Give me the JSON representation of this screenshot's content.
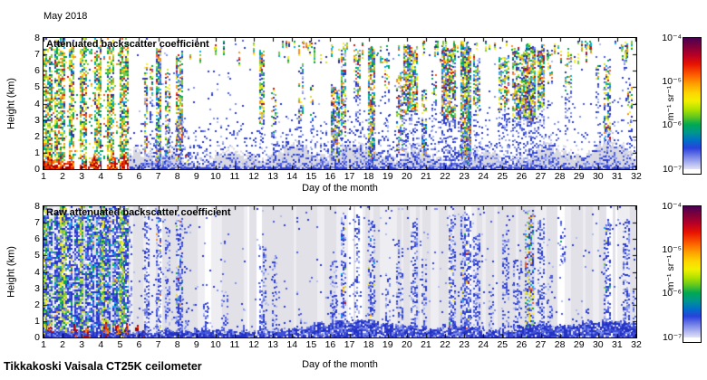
{
  "figure": {
    "title": "May 2018",
    "footer": "Tikkakoski Vaisala CT25K ceilometer",
    "xlabel": "Day of the month",
    "ylabel": "Height (km)",
    "x_ticks": [
      1,
      2,
      3,
      4,
      5,
      6,
      7,
      8,
      9,
      10,
      11,
      12,
      13,
      14,
      15,
      16,
      17,
      18,
      19,
      20,
      21,
      22,
      23,
      24,
      25,
      26,
      27,
      28,
      29,
      30,
      31,
      32
    ],
    "y_ticks": [
      0,
      1,
      2,
      3,
      4,
      5,
      6,
      7,
      8
    ],
    "colorbar": {
      "unit": "m⁻¹ sr⁻¹",
      "ticks": [
        "10⁻⁴",
        "10⁻⁵",
        "10⁻⁶",
        "10⁻⁷"
      ]
    }
  },
  "palettes": {
    "rain": [
      [
        "#00a651",
        0.16
      ],
      [
        "#7ac943",
        0.15
      ],
      [
        "#d9e021",
        0.13
      ],
      [
        "#fcee21",
        0.12
      ],
      [
        "#f7931e",
        0.1
      ],
      [
        "#f15a24",
        0.07
      ],
      [
        "#d01010",
        0.06
      ],
      [
        "#00aeef",
        0.1
      ],
      [
        "#2e3192",
        0.11
      ]
    ],
    "field_top": [
      [
        "#00a651",
        0.17
      ],
      [
        "#7ac943",
        0.15
      ],
      [
        "#d9e021",
        0.13
      ],
      [
        "#fcee21",
        0.12
      ],
      [
        "#f7931e",
        0.09
      ],
      [
        "#f15a24",
        0.05
      ],
      [
        "#d01010",
        0.04
      ],
      [
        "#00aeef",
        0.09
      ],
      [
        "#2e3192",
        0.11
      ],
      [
        "#ffffff",
        0.05
      ]
    ],
    "field_bottom": [
      [
        "#2433cc",
        0.38
      ],
      [
        "#4b5ae0",
        0.18
      ],
      [
        "#8a97ec",
        0.12
      ],
      [
        "#00a651",
        0.07
      ],
      [
        "#7ac943",
        0.05
      ],
      [
        "#00aeef",
        0.06
      ],
      [
        "#d9e021",
        0.04
      ],
      [
        "#f7931e",
        0.02
      ],
      [
        "#ffffff",
        0.08
      ]
    ],
    "warm": [
      [
        "#c00000",
        0.3
      ],
      [
        "#e83000",
        0.25
      ],
      [
        "#ff6a00",
        0.2
      ],
      [
        "#8f0000",
        0.15
      ],
      [
        "#ff9e00",
        0.1
      ]
    ],
    "blues": [
      [
        "#2a3bd0",
        0.35
      ],
      [
        "#4d5fde",
        0.3
      ],
      [
        "#8391ea",
        0.2
      ],
      [
        "#b0baf2",
        0.15
      ]
    ],
    "blues_dark": [
      [
        "#2331c4",
        0.45
      ],
      [
        "#3f50d8",
        0.3
      ],
      [
        "#7787e6",
        0.25
      ]
    ],
    "greens": [
      [
        "#7ac943",
        0.35
      ],
      [
        "#d9e021",
        0.3
      ],
      [
        "#fcee21",
        0.2
      ],
      [
        "#00a651",
        0.15
      ]
    ],
    "gray_layer": "#d8d8e0"
  },
  "colormap": [
    [
      0,
      "#4a0052"
    ],
    [
      0.06,
      "#7c003e"
    ],
    [
      0.13,
      "#b60026"
    ],
    [
      0.2,
      "#e81400"
    ],
    [
      0.28,
      "#fd5c00"
    ],
    [
      0.35,
      "#ffa000"
    ],
    [
      0.42,
      "#fdd600"
    ],
    [
      0.48,
      "#f2f000"
    ],
    [
      0.54,
      "#b4e400"
    ],
    [
      0.6,
      "#64c81e"
    ],
    [
      0.66,
      "#00a855"
    ],
    [
      0.72,
      "#00968e"
    ],
    [
      0.78,
      "#0070c8"
    ],
    [
      0.84,
      "#2a42dc"
    ],
    [
      0.9,
      "#7280e8"
    ],
    [
      0.96,
      "#b6bcf0"
    ],
    [
      1,
      "#e2e2f6"
    ]
  ],
  "chart_data": [
    {
      "type": "heatmap",
      "title": "Attenuated backscatter coefficient",
      "xlabel": "Day of the month",
      "ylabel": "Height (km)",
      "x_range": [
        1,
        32
      ],
      "y_range_km": [
        0,
        8
      ],
      "color_scale": {
        "unit": "m⁻¹ sr⁻¹",
        "scale": "log",
        "min": "1e-7",
        "max": "1e-4",
        "tick_labels": [
          "10⁻⁴",
          "10⁻⁵",
          "10⁻⁶",
          "10⁻⁷"
        ]
      },
      "background": "#ffffff",
      "seed": 42,
      "notes": "clouds entries = [day_start, day_end, km_bottom, km_top, density]; dense precipitation/cloud 1-5.5, boundary-layer gray aerosol below ~2 km after day 5.5",
      "dense_field": {
        "d0": 1,
        "d1": 5.45,
        "density": 0.72,
        "gap_density": 0.1,
        "gaps": [
          [
            1.38,
            1.55
          ],
          [
            2.08,
            2.3
          ],
          [
            2.6,
            2.88
          ],
          [
            3.2,
            3.58
          ],
          [
            3.98,
            4.28
          ],
          [
            4.62,
            4.97
          ]
        ],
        "surface_arcs": [
          [
            1.0,
            1.6
          ],
          [
            2.15,
            2.6
          ],
          [
            3.35,
            3.8
          ],
          [
            4.35,
            4.85
          ],
          [
            5.0,
            5.4
          ]
        ]
      },
      "boundary_layer": {
        "d0": 5.45,
        "base": 0.85,
        "bump_center": 5.9,
        "bump_height": 0.9,
        "bump_halfwidth": 0.9
      },
      "speckle_day_mult": [
        0,
        0,
        0,
        0,
        0.3,
        0.9,
        0.9,
        0.8,
        0.7,
        0.8,
        0.7,
        0.8,
        0.9,
        0.8,
        0.9,
        1.0,
        0.9,
        1.0,
        0.9,
        1.0,
        0.9,
        1.0,
        1.0,
        0.8,
        0.9,
        1.0,
        0.9,
        0.6,
        0.7,
        0.9,
        0.8
      ],
      "top_specks": {
        "d0": 8.6,
        "d1": 31.8,
        "k0": 6.3,
        "k1": 7.8,
        "count": 85
      },
      "clouds": [
        [
          6.28,
          6.45,
          1.0,
          6.8,
          0.55
        ],
        [
          6.55,
          6.65,
          4.5,
          6.5,
          0.35
        ],
        [
          6.88,
          7.12,
          0.2,
          7.8,
          0.8
        ],
        [
          7.38,
          7.58,
          0.8,
          6.2,
          0.55
        ],
        [
          7.95,
          8.22,
          0.3,
          7.3,
          0.75
        ],
        [
          8.42,
          8.52,
          0.1,
          1.2,
          0.5
        ],
        [
          12.32,
          12.55,
          2.4,
          7.4,
          0.65
        ],
        [
          12.9,
          13.12,
          2.0,
          5.2,
          0.35
        ],
        [
          14.32,
          14.55,
          3.0,
          6.6,
          0.45
        ],
        [
          14.95,
          15.12,
          3.0,
          5.2,
          0.3
        ],
        [
          16.05,
          16.42,
          0.3,
          5.2,
          0.7
        ],
        [
          16.55,
          16.82,
          2.0,
          7.6,
          0.7
        ],
        [
          17.25,
          17.5,
          4.5,
          7.7,
          0.45
        ],
        [
          18.0,
          18.3,
          0.5,
          7.7,
          0.75
        ],
        [
          18.85,
          19.1,
          4.8,
          7.7,
          0.45
        ],
        [
          19.45,
          19.75,
          0.8,
          6.0,
          0.5
        ],
        [
          19.85,
          20.55,
          3.3,
          7.7,
          0.8
        ],
        [
          20.8,
          21.05,
          0.5,
          5.0,
          0.5
        ],
        [
          21.3,
          21.5,
          3.8,
          6.2,
          0.35
        ],
        [
          21.85,
          22.55,
          3.0,
          7.7,
          0.8
        ],
        [
          22.85,
          23.3,
          0.2,
          7.7,
          0.8
        ],
        [
          23.5,
          23.8,
          3.3,
          7.0,
          0.6
        ],
        [
          24.8,
          25.3,
          3.5,
          7.2,
          0.6
        ],
        [
          25.55,
          26.0,
          3.0,
          7.5,
          0.65
        ],
        [
          26.1,
          26.65,
          2.8,
          7.7,
          0.85
        ],
        [
          26.85,
          27.2,
          3.5,
          7.7,
          0.8
        ],
        [
          27.4,
          27.62,
          5.0,
          7.5,
          0.4
        ],
        [
          28.3,
          28.6,
          4.5,
          7.2,
          0.4
        ],
        [
          29.9,
          30.02,
          5.0,
          7.0,
          0.35
        ],
        [
          30.3,
          30.58,
          1.5,
          7.0,
          0.55
        ],
        [
          31.25,
          31.48,
          6.3,
          7.6,
          0.4
        ],
        [
          31.55,
          31.78,
          2.5,
          5.5,
          0.35
        ]
      ]
    },
    {
      "type": "heatmap",
      "title": "Raw attenuated backscatter coefficient",
      "xlabel": "Day of the month",
      "ylabel": "Height (km)",
      "x_range": [
        1,
        32
      ],
      "y_range_km": [
        0,
        8
      ],
      "color_scale": {
        "unit": "m⁻¹ sr⁻¹",
        "scale": "log",
        "min": "1e-7",
        "max": "1e-4",
        "tick_labels": [
          "10⁻⁴",
          "10⁻⁵",
          "10⁻⁶",
          "10⁻⁷"
        ]
      },
      "background": "#e7e7ea",
      "seed": 7,
      "stripes": true,
      "notes": "columns entries = [day_start, day_end, km_bottom, km_top, density, type(0=blue noise,1=blue+rain specks,2=rainbow)]",
      "dense_field": {
        "d0": 1,
        "d1": 5.45,
        "density": 0.8,
        "gap_density": 0.25,
        "gaps": [
          [
            1.42,
            1.5
          ],
          [
            2.48,
            2.56
          ],
          [
            3.08,
            3.18
          ],
          [
            3.62,
            3.72
          ],
          [
            4.42,
            4.54
          ]
        ],
        "bright_streaks": [
          [
            0.98,
            1.12
          ],
          [
            1.88,
            2.14
          ],
          [
            2.9,
            3.05
          ],
          [
            4.0,
            4.16
          ],
          [
            4.98,
            5.14
          ]
        ],
        "surface_arcs": [
          [
            1.05,
            1.5
          ],
          [
            2.3,
            2.75
          ],
          [
            3.0,
            3.45
          ],
          [
            3.95,
            4.5
          ],
          [
            4.6,
            5.0
          ],
          [
            5.15,
            5.5
          ],
          [
            5.7,
            6.0
          ],
          [
            6.1,
            6.35
          ]
        ]
      },
      "speckle_day_mult": [
        0,
        0,
        0,
        0,
        0.4,
        0.8,
        0.9,
        0.8,
        0.5,
        0.5,
        0.4,
        0.6,
        0.5,
        0.4,
        0.3,
        0.7,
        0.6,
        0.7,
        0.5,
        0.6,
        0.5,
        0.7,
        0.8,
        0.5,
        0.5,
        0.8,
        0.6,
        0.4,
        0.4,
        0.6,
        0.5
      ],
      "bottom_band": {
        "bumps": [
          [
            15,
            18.5,
            0.2
          ],
          [
            21.8,
            24,
            0.25
          ],
          [
            25.8,
            27.5,
            0.2
          ],
          [
            29,
            31.8,
            0.15
          ]
        ]
      },
      "columns": [
        [
          5.5,
          5.62,
          0,
          7.5,
          0.22,
          0
        ],
        [
          6.28,
          6.48,
          0,
          7.5,
          0.5,
          0
        ],
        [
          6.88,
          7.12,
          0,
          7.8,
          0.6,
          1
        ],
        [
          7.38,
          7.58,
          0,
          7.0,
          0.4,
          0
        ],
        [
          7.95,
          8.22,
          0,
          7.6,
          0.6,
          1
        ],
        [
          8.42,
          8.55,
          0,
          1.5,
          0.5,
          0
        ],
        [
          9.38,
          9.55,
          0,
          2.5,
          0.45,
          0
        ],
        [
          10.3,
          10.6,
          0,
          3.0,
          0.3,
          0
        ],
        [
          11.38,
          11.52,
          0,
          2.2,
          0.3,
          0
        ],
        [
          12.32,
          12.6,
          0,
          6.0,
          0.45,
          0
        ],
        [
          12.95,
          13.15,
          0,
          5.0,
          0.3,
          0
        ],
        [
          14.35,
          14.5,
          0,
          2.0,
          0.3,
          0
        ],
        [
          16.02,
          16.35,
          0,
          4.8,
          0.5,
          0
        ],
        [
          16.55,
          16.82,
          0,
          7.7,
          0.55,
          1
        ],
        [
          17.28,
          17.5,
          0,
          7.6,
          0.35,
          0
        ],
        [
          18.0,
          18.3,
          0,
          7.3,
          0.55,
          1
        ],
        [
          18.9,
          19.1,
          0,
          4.0,
          0.35,
          0
        ],
        [
          19.45,
          19.75,
          0,
          6.0,
          0.35,
          0
        ],
        [
          20.2,
          20.5,
          0,
          7.3,
          0.5,
          0
        ],
        [
          20.8,
          21.05,
          0,
          5.0,
          0.45,
          0
        ],
        [
          22.2,
          22.55,
          0,
          7.7,
          0.5,
          1
        ],
        [
          22.85,
          23.28,
          0,
          7.7,
          0.6,
          1
        ],
        [
          23.5,
          23.8,
          0,
          6.5,
          0.45,
          0
        ],
        [
          24.3,
          24.5,
          0,
          3.0,
          0.3,
          0
        ],
        [
          25.0,
          25.35,
          0,
          7.2,
          0.35,
          0
        ],
        [
          25.6,
          25.95,
          0,
          5.0,
          0.35,
          0
        ],
        [
          26.2,
          26.6,
          0,
          7.8,
          0.65,
          2
        ],
        [
          26.85,
          27.15,
          0,
          7.6,
          0.5,
          0
        ],
        [
          27.4,
          27.6,
          0,
          4.0,
          0.35,
          0
        ],
        [
          28.05,
          28.25,
          4.5,
          7.2,
          0.45,
          1
        ],
        [
          29.35,
          29.52,
          0,
          2.0,
          0.35,
          0
        ],
        [
          30.3,
          30.6,
          0,
          7.2,
          0.5,
          1
        ],
        [
          31.3,
          31.65,
          0,
          7.2,
          0.5,
          0
        ],
        [
          31.85,
          32.0,
          0,
          3.0,
          0.4,
          0
        ]
      ]
    }
  ]
}
